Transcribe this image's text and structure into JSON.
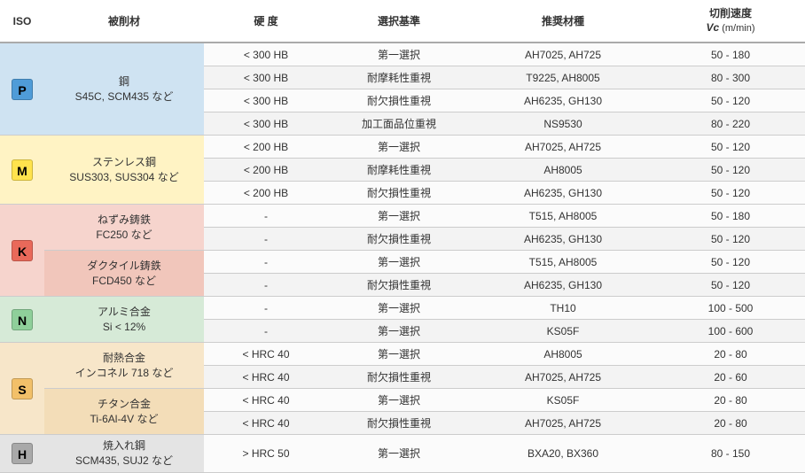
{
  "columns": {
    "iso": "ISO",
    "material": "被削材",
    "hardness": "硬 度",
    "criteria": "選択基準",
    "grade": "推奨材種",
    "vc_title": "切削速度",
    "vc_sub": "Vc",
    "vc_unit": " (m/min)"
  },
  "groups": [
    {
      "iso": "P",
      "iso_bg": "bg-P",
      "badge_bg": "bg-P-dk",
      "materials": [
        {
          "name_l1": "鋼",
          "name_l2": "S45C, SCM435 など",
          "mat_bg": "bg-P",
          "rows": [
            {
              "hard": "< 300 HB",
              "sel": "第一選択",
              "grade": "AH7025, AH725",
              "vc": "50 - 180",
              "z": "rz-a"
            },
            {
              "hard": "< 300 HB",
              "sel": "耐摩耗性重視",
              "grade": "T9225, AH8005",
              "vc": "80 - 300",
              "z": "rz-b"
            },
            {
              "hard": "< 300 HB",
              "sel": "耐欠損性重視",
              "grade": "AH6235, GH130",
              "vc": "50 - 120",
              "z": "rz-a"
            },
            {
              "hard": "< 300 HB",
              "sel": "加工面品位重視",
              "grade": "NS9530",
              "vc": "80 - 220",
              "z": "rz-b"
            }
          ]
        }
      ]
    },
    {
      "iso": "M",
      "iso_bg": "bg-M",
      "badge_bg": "bg-M-dk",
      "materials": [
        {
          "name_l1": "ステンレス鋼",
          "name_l2": "SUS303, SUS304 など",
          "mat_bg": "bg-M",
          "rows": [
            {
              "hard": "< 200 HB",
              "sel": "第一選択",
              "grade": "AH7025, AH725",
              "vc": "50 - 120",
              "z": "rz-a"
            },
            {
              "hard": "< 200 HB",
              "sel": "耐摩耗性重視",
              "grade": "AH8005",
              "vc": "50 - 120",
              "z": "rz-b"
            },
            {
              "hard": "< 200 HB",
              "sel": "耐欠損性重視",
              "grade": "AH6235, GH130",
              "vc": "50 - 120",
              "z": "rz-a"
            }
          ]
        }
      ]
    },
    {
      "iso": "K",
      "iso_bg": "bg-K",
      "badge_bg": "bg-K-dk",
      "materials": [
        {
          "name_l1": "ねずみ鋳鉄",
          "name_l2": "FC250 など",
          "mat_bg": "bg-K",
          "rows": [
            {
              "hard": "-",
              "sel": "第一選択",
              "grade": "T515, AH8005",
              "vc": "50 - 180",
              "z": "rz-a"
            },
            {
              "hard": "-",
              "sel": "耐欠損性重視",
              "grade": "AH6235, GH130",
              "vc": "50 - 120",
              "z": "rz-b"
            }
          ]
        },
        {
          "name_l1": "ダクタイル鋳鉄",
          "name_l2": "FCD450 など",
          "mat_bg": "bg-K2",
          "rows": [
            {
              "hard": "-",
              "sel": "第一選択",
              "grade": "T515, AH8005",
              "vc": "50 - 120",
              "z": "rz-a"
            },
            {
              "hard": "-",
              "sel": "耐欠損性重視",
              "grade": "AH6235, GH130",
              "vc": "50 - 120",
              "z": "rz-b"
            }
          ]
        }
      ]
    },
    {
      "iso": "N",
      "iso_bg": "bg-N",
      "badge_bg": "bg-N-dk",
      "materials": [
        {
          "name_l1": "アルミ合金",
          "name_l2": "Si < 12%",
          "mat_bg": "bg-N",
          "rows": [
            {
              "hard": "-",
              "sel": "第一選択",
              "grade": "TH10",
              "vc": "100 - 500",
              "z": "rz-a"
            },
            {
              "hard": "-",
              "sel": "第一選択",
              "grade": "KS05F",
              "vc": "100 - 600",
              "z": "rz-b"
            }
          ]
        }
      ]
    },
    {
      "iso": "S",
      "iso_bg": "bg-S",
      "badge_bg": "bg-S-dk",
      "materials": [
        {
          "name_l1": "耐熱合金",
          "name_l2": "インコネル 718 など",
          "mat_bg": "bg-S",
          "rows": [
            {
              "hard": "< HRC 40",
              "sel": "第一選択",
              "grade": "AH8005",
              "vc": "20 - 80",
              "z": "rz-a"
            },
            {
              "hard": "< HRC 40",
              "sel": "耐欠損性重視",
              "grade": "AH7025, AH725",
              "vc": "20 - 60",
              "z": "rz-b"
            }
          ]
        },
        {
          "name_l1": "チタン合金",
          "name_l2": "Ti-6Al-4V など",
          "mat_bg": "bg-S2",
          "rows": [
            {
              "hard": "< HRC 40",
              "sel": "第一選択",
              "grade": "KS05F",
              "vc": "20 - 80",
              "z": "rz-a"
            },
            {
              "hard": "< HRC 40",
              "sel": "耐欠損性重視",
              "grade": "AH7025, AH725",
              "vc": "20 - 80",
              "z": "rz-b"
            }
          ]
        }
      ]
    },
    {
      "iso": "H",
      "iso_bg": "bg-H",
      "badge_bg": "bg-H-dk",
      "materials": [
        {
          "name_l1": "焼入れ鋼",
          "name_l2": "SCM435, SUJ2 など",
          "mat_bg": "bg-H",
          "rows": [
            {
              "hard": "> HRC 50",
              "sel": "第一選択",
              "grade": "BXA20, BX360",
              "vc": "80 - 150",
              "z": "rz-a"
            }
          ]
        }
      ]
    }
  ]
}
